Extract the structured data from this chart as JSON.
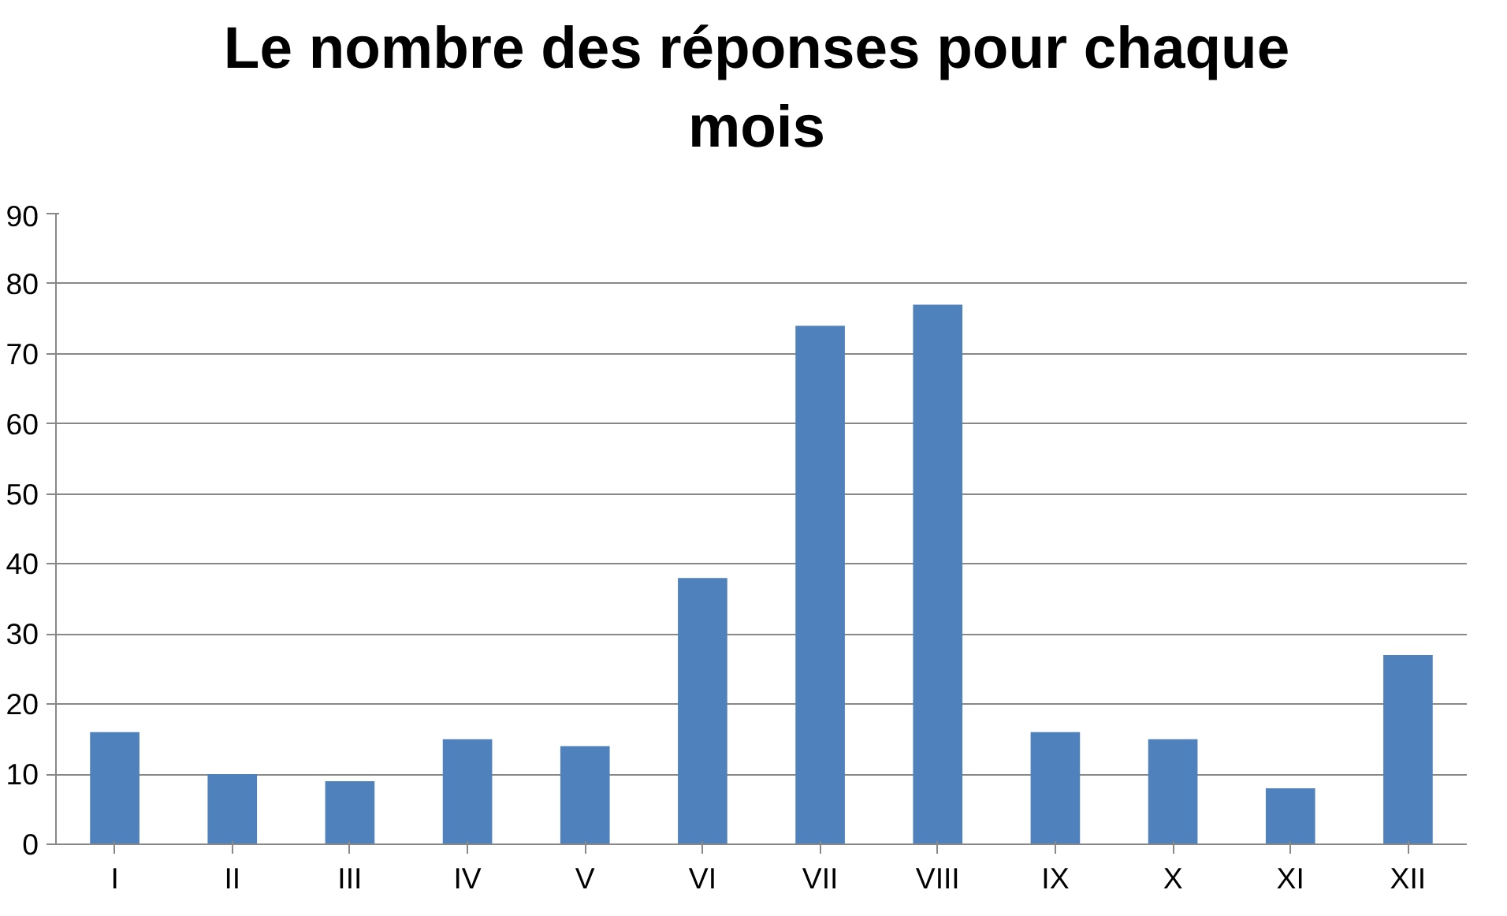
{
  "chart_data": {
    "type": "bar",
    "title": "Le nombre des réponses pour chaque mois",
    "categories": [
      "I",
      "II",
      "III",
      "IV",
      "V",
      "VI",
      "VII",
      "VIII",
      "IX",
      "X",
      "XI",
      "XII"
    ],
    "values": [
      16,
      10,
      9,
      15,
      14,
      38,
      74,
      77,
      16,
      15,
      8,
      27
    ],
    "color": "#4f81bd",
    "ylim": [
      0,
      90
    ],
    "yticks": [
      0,
      10,
      20,
      30,
      40,
      50,
      60,
      70,
      80,
      90
    ],
    "grid": "y"
  }
}
